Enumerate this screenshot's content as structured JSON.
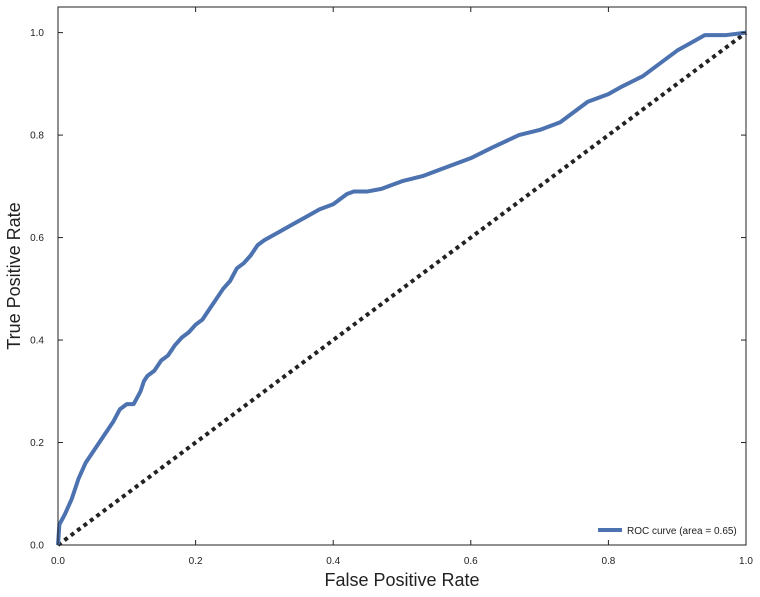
{
  "chart_data": {
    "type": "line",
    "title": "",
    "xlabel": "False Positive Rate",
    "ylabel": "True Positive Rate",
    "xlim": [
      0,
      1
    ],
    "ylim": [
      0,
      1.05
    ],
    "x_ticks": [
      0,
      0.2,
      0.4,
      0.6,
      0.8,
      1
    ],
    "x_tick_labels": [
      "0.0",
      "0.2",
      "0.4",
      "0.6",
      "0.8",
      "1.0"
    ],
    "y_ticks": [
      0,
      0.2,
      0.4,
      0.6,
      0.8,
      1
    ],
    "y_tick_labels": [
      "0.0",
      "0.2",
      "0.4",
      "0.6",
      "0.8",
      "1.0"
    ],
    "grid": false,
    "legend_position": "lower-right",
    "series": [
      {
        "name": "ROC curve (area = 0.65)",
        "color": "#4c72b0",
        "style": "solid",
        "x": [
          0,
          0.002,
          0.01,
          0.02,
          0.03,
          0.04,
          0.05,
          0.06,
          0.07,
          0.08,
          0.09,
          0.1,
          0.11,
          0.12,
          0.125,
          0.13,
          0.14,
          0.15,
          0.16,
          0.17,
          0.18,
          0.19,
          0.2,
          0.21,
          0.22,
          0.23,
          0.24,
          0.25,
          0.26,
          0.27,
          0.28,
          0.29,
          0.3,
          0.32,
          0.34,
          0.36,
          0.38,
          0.4,
          0.42,
          0.43,
          0.44,
          0.45,
          0.47,
          0.5,
          0.53,
          0.56,
          0.6,
          0.63,
          0.67,
          0.7,
          0.72,
          0.73,
          0.75,
          0.77,
          0.8,
          0.82,
          0.85,
          0.87,
          0.89,
          0.9,
          0.92,
          0.94,
          0.95,
          0.97,
          1.0
        ],
        "y": [
          0,
          0.04,
          0.06,
          0.09,
          0.13,
          0.16,
          0.18,
          0.2,
          0.22,
          0.24,
          0.265,
          0.275,
          0.275,
          0.3,
          0.32,
          0.33,
          0.34,
          0.36,
          0.37,
          0.39,
          0.405,
          0.415,
          0.43,
          0.44,
          0.46,
          0.48,
          0.5,
          0.515,
          0.54,
          0.55,
          0.565,
          0.585,
          0.595,
          0.61,
          0.625,
          0.64,
          0.655,
          0.665,
          0.685,
          0.69,
          0.69,
          0.69,
          0.695,
          0.71,
          0.72,
          0.735,
          0.755,
          0.775,
          0.8,
          0.81,
          0.82,
          0.825,
          0.845,
          0.865,
          0.88,
          0.895,
          0.915,
          0.935,
          0.955,
          0.965,
          0.98,
          0.995,
          0.995,
          0.995,
          1.0
        ]
      },
      {
        "name": "",
        "color": "#222222",
        "style": "dotted",
        "x": [
          0,
          1
        ],
        "y": [
          0,
          1
        ]
      }
    ]
  }
}
